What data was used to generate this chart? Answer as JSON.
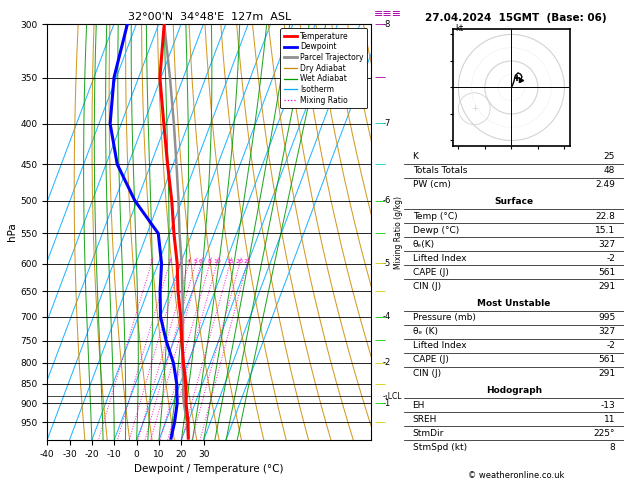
{
  "title_skewt": "32°00'N  34°48'E  127m  ASL",
  "title_right": "27.04.2024  15GMT  (Base: 06)",
  "xlabel": "Dewpoint / Temperature (°C)",
  "temp_profile_p": [
    995,
    950,
    900,
    850,
    800,
    750,
    700,
    650,
    600,
    550,
    500,
    450,
    400,
    350,
    300
  ],
  "temp_profile_T": [
    22.8,
    20.0,
    16.0,
    12.5,
    8.0,
    3.5,
    -1.0,
    -6.5,
    -11.5,
    -18.0,
    -24.5,
    -32.5,
    -41.0,
    -50.5,
    -57.5
  ],
  "dewp_profile_p": [
    995,
    950,
    900,
    850,
    800,
    750,
    700,
    650,
    600,
    550,
    500,
    450,
    400,
    350,
    300
  ],
  "dewp_profile_T": [
    15.1,
    14.0,
    12.0,
    8.5,
    3.5,
    -3.5,
    -10.0,
    -14.5,
    -18.5,
    -25.0,
    -41.0,
    -55.0,
    -65.0,
    -71.0,
    -74.0
  ],
  "parcel_p": [
    995,
    950,
    900,
    875,
    850,
    800,
    750,
    700,
    650,
    600,
    550,
    500,
    450,
    400,
    350,
    300
  ],
  "parcel_T": [
    22.8,
    19.5,
    15.0,
    13.0,
    11.5,
    7.5,
    4.0,
    0.0,
    -4.5,
    -9.5,
    -15.5,
    -21.5,
    -28.5,
    -36.5,
    -46.0,
    -57.5
  ],
  "lcl_p": 882,
  "tmin": -40,
  "tmax": 35,
  "pmin": 300,
  "pmax": 1000,
  "colors": {
    "temp": "#ff0000",
    "dewp": "#0000ff",
    "parcel": "#909090",
    "dry_adiabat": "#cc8800",
    "wet_adiabat": "#009900",
    "isotherm": "#00aaff",
    "mixing_ratio": "#ff00cc"
  },
  "km_ticks_p": [
    300,
    400,
    500,
    600,
    700,
    800,
    900
  ],
  "km_ticks_lbl": [
    "8",
    "7",
    "6",
    "5",
    "4",
    "2",
    "1"
  ],
  "pressure_lines": [
    300,
    350,
    400,
    450,
    500,
    550,
    600,
    650,
    700,
    750,
    800,
    850,
    900,
    950
  ],
  "legend_items": [
    {
      "label": "Temperature",
      "color": "#ff0000",
      "lw": 2,
      "ls": "-"
    },
    {
      "label": "Dewpoint",
      "color": "#0000ff",
      "lw": 2,
      "ls": "-"
    },
    {
      "label": "Parcel Trajectory",
      "color": "#909090",
      "lw": 2,
      "ls": "-"
    },
    {
      "label": "Dry Adiabat",
      "color": "#cc8800",
      "lw": 0.9,
      "ls": "-"
    },
    {
      "label": "Wet Adiabat",
      "color": "#009900",
      "lw": 0.9,
      "ls": "-"
    },
    {
      "label": "Isotherm",
      "color": "#00aaff",
      "lw": 0.9,
      "ls": "-"
    },
    {
      "label": "Mixing Ratio",
      "color": "#ff00cc",
      "lw": 0.9,
      "ls": ":"
    }
  ],
  "info": {
    "K": "25",
    "TotTot": "48",
    "PW": "2.49",
    "s_temp": "22.8",
    "s_dewp": "15.1",
    "s_theta": "327",
    "s_li": "-2",
    "s_cape": "561",
    "s_cin": "291",
    "mu_press": "995",
    "mu_theta": "327",
    "mu_li": "-2",
    "mu_cape": "561",
    "mu_cin": "291",
    "EH": "-13",
    "SREH": "11",
    "StmDir": "225°",
    "StmSpd": "8"
  },
  "wind_barb_p": [
    300,
    350,
    400,
    450,
    500,
    550,
    600,
    650,
    700,
    750,
    800,
    850,
    900,
    950
  ],
  "wind_barb_color": [
    "#aa00aa",
    "#aa00aa",
    "#00cccc",
    "#00cccc",
    "#00cc00",
    "#00cc00",
    "#cccc00",
    "#cccc00",
    "#00cc00",
    "#00cc00",
    "#cccc00",
    "#cccc00",
    "#00cc00",
    "#cccc00"
  ],
  "wind_barb_sym": [
    "≡",
    "≡",
    "=",
    "=",
    "-",
    "-",
    "-",
    "-",
    "-",
    "-",
    "-",
    "-",
    "-",
    "-"
  ]
}
